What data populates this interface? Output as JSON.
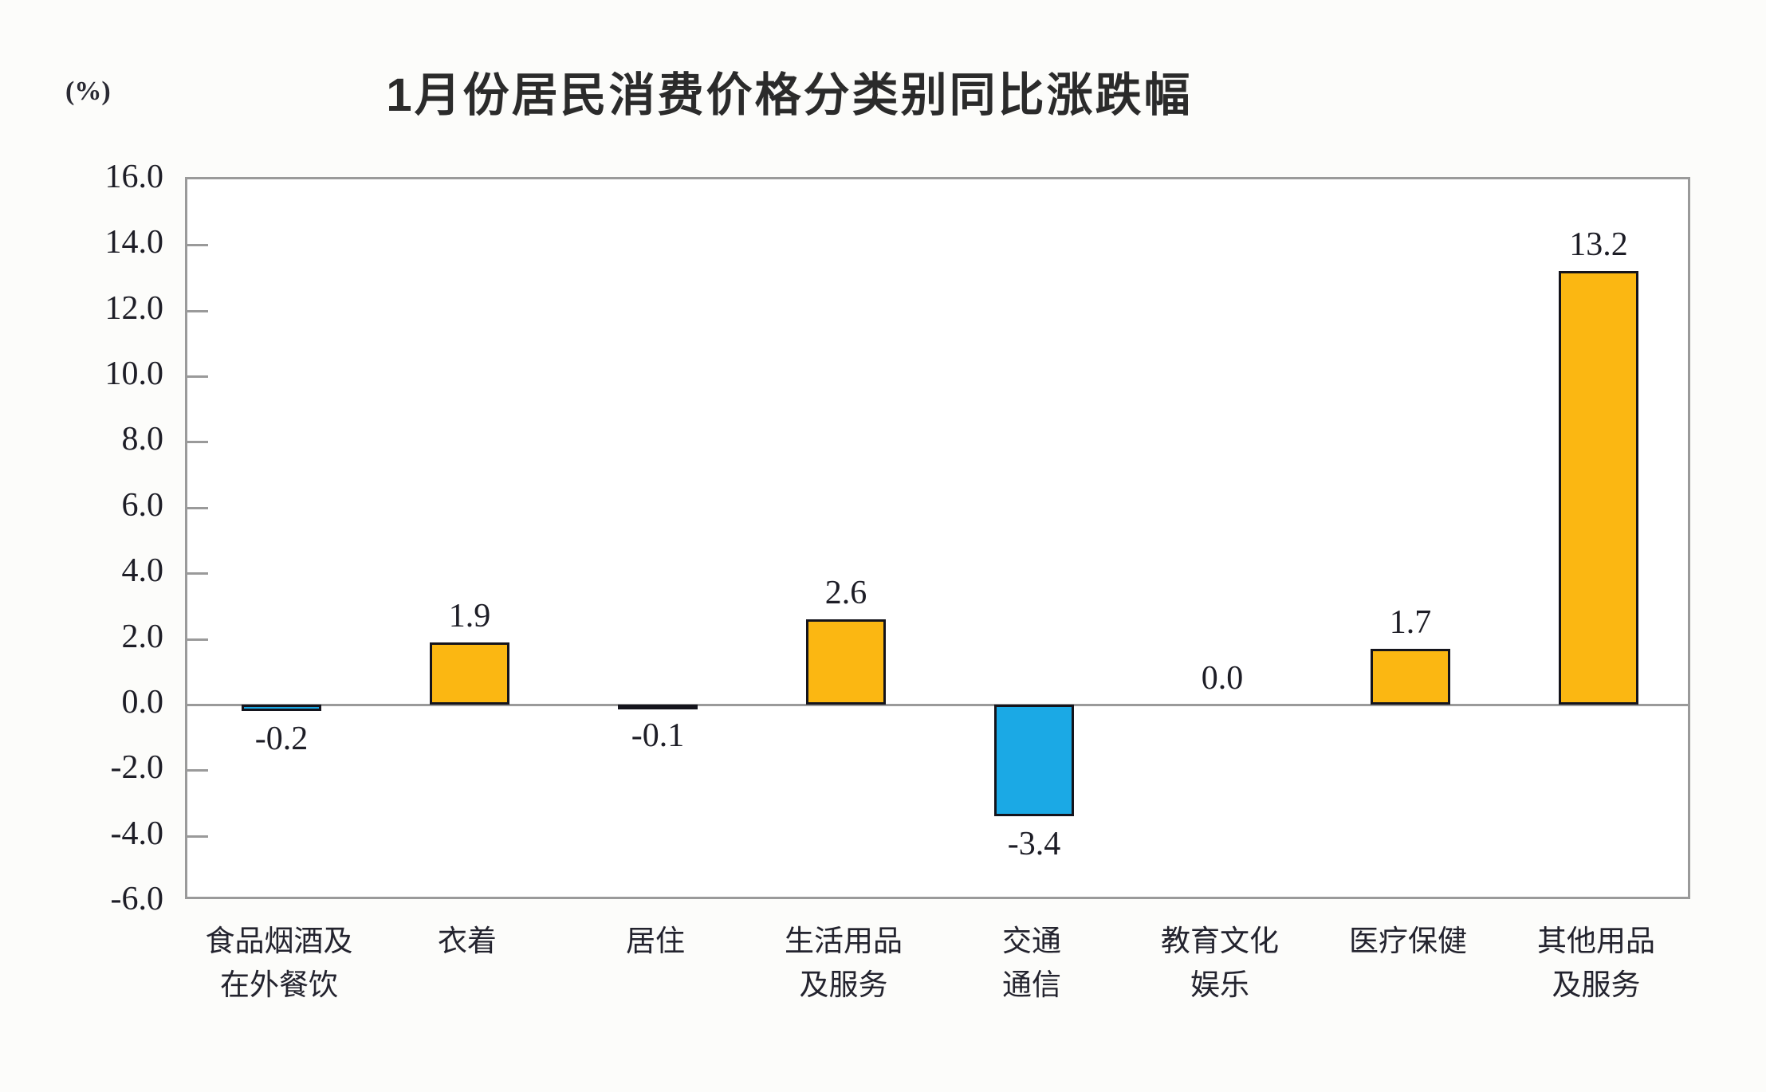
{
  "chart_data": {
    "type": "bar",
    "title": "1月份居民消费价格分类别同比涨跌幅",
    "unit_label": "(%)",
    "categories": [
      "食品烟酒及\n在外餐饮",
      "衣着",
      "居住",
      "生活用品\n及服务",
      "交通\n通信",
      "教育文化\n娱乐",
      "医疗保健",
      "其他用品\n及服务"
    ],
    "values": [
      -0.2,
      1.9,
      -0.1,
      2.6,
      -3.4,
      0.0,
      1.7,
      13.2
    ],
    "value_labels": [
      "-0.2",
      "1.9",
      "-0.1",
      "2.6",
      "-3.4",
      "0.0",
      "1.7",
      "13.2"
    ],
    "ylabel": "",
    "xlabel": "",
    "ylim": [
      -6.0,
      16.0
    ],
    "ytick_step": 2.0,
    "yticks": [
      "16.0",
      "14.0",
      "12.0",
      "10.0",
      "8.0",
      "6.0",
      "4.0",
      "2.0",
      "0.0",
      "-2.0",
      "-4.0",
      "-6.0"
    ],
    "grid": false,
    "legend": null,
    "colors": {
      "positive_bar": "#FBB712",
      "negative_bar": "#1BA9E5",
      "bar_border": "#14141C",
      "axis": "#9A9A9A",
      "text": "#1D1D26"
    }
  }
}
